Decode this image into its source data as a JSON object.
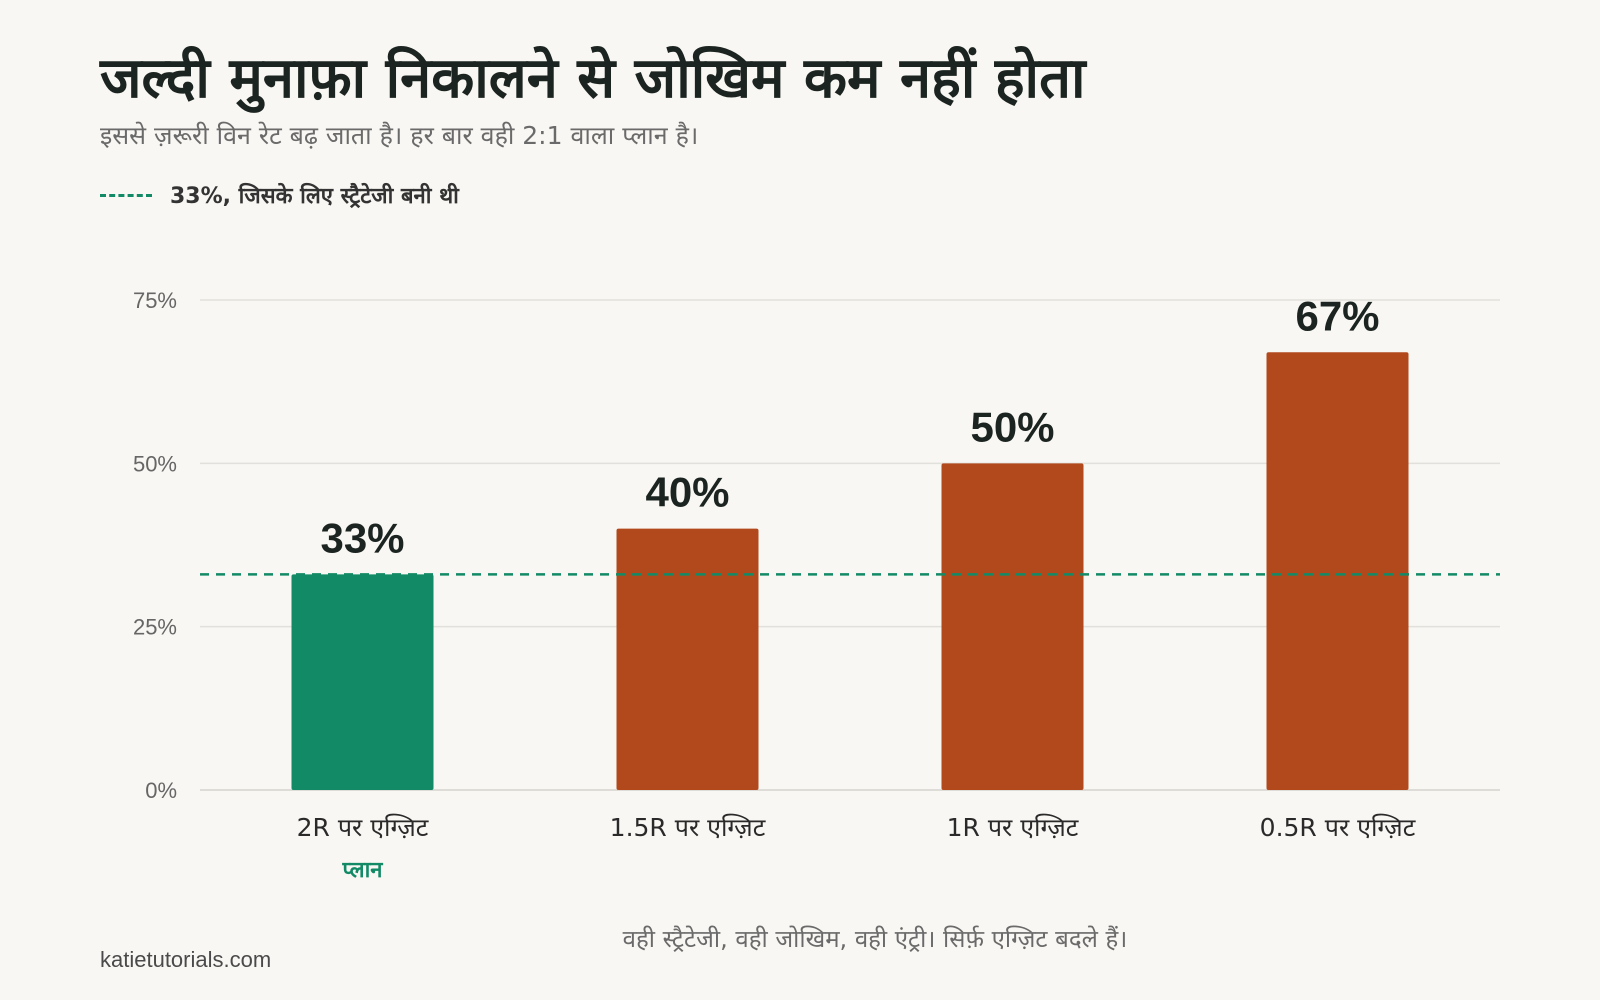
{
  "title": "जल्दी मुनाफ़ा निकालने से जोखिम कम नहीं होता",
  "subtitle": "इससे ज़रूरी विन रेट बढ़ जाता है। हर बार वही 2:1 वाला प्लान है।",
  "legend_label": "33%, जिसके लिए स्ट्रैटेजी बनी थी",
  "footer_note": "वही स्ट्रैटेजी, वही जोखिम, वही एंट्री। सिर्फ़ एग्ज़िट बदले हैं।",
  "brand": "katietutorials.com",
  "colors": {
    "plan": "#138a66",
    "other": "#b1491d",
    "reference": "#138a66",
    "grid": "#e2e0da"
  },
  "chart_data": {
    "type": "bar",
    "categories": [
      "2R पर एग्ज़िट",
      "1.5R पर एग्ज़िट",
      "1R पर एग्ज़िट",
      "0.5R पर एग्ज़िट"
    ],
    "values": [
      33,
      40,
      50,
      67
    ],
    "value_labels": [
      "33%",
      "40%",
      "50%",
      "67%"
    ],
    "highlight_index": 0,
    "highlight_label": "प्लान",
    "reference_value": 33,
    "ylim": [
      0,
      75
    ],
    "yticks": [
      0,
      25,
      50,
      75
    ],
    "ytick_labels": [
      "0%",
      "25%",
      "50%",
      "75%"
    ],
    "grid": true
  }
}
